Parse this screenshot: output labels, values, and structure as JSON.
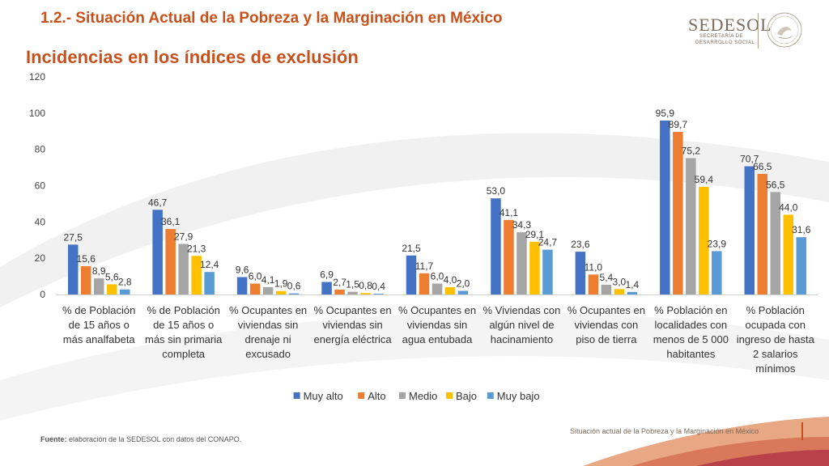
{
  "header": {
    "section_title": "1.2.- Situación Actual de la Pobreza y la Marginación en México",
    "slide_title": "Incidencias en los índices de exclusión"
  },
  "logo": {
    "wordmark": "SEDESOL",
    "sub1": "SECRETARÍA DE",
    "sub2": "DESARROLLO SOCIAL"
  },
  "footer": {
    "source_label": "Fuente:",
    "source_text": " elaboración de la SEDESOL con datos del CONAPO.",
    "right_text": "Situación actual de la Pobreza y la Marginación en México"
  },
  "colors": {
    "title": "#c8511b",
    "series": [
      "#4472c4",
      "#ed7d31",
      "#a5a5a5",
      "#ffc000",
      "#5b9bd5"
    ]
  },
  "chart_data": {
    "type": "bar",
    "ylim": [
      0,
      120
    ],
    "yticks": [
      "0",
      "20",
      "40",
      "60",
      "80",
      "100",
      "120"
    ],
    "grid": false,
    "legend_position": "bottom",
    "categories": [
      [
        "% de Población",
        "de 15 años o",
        "más analfabeta"
      ],
      [
        "% de Población",
        "de 15 años o",
        "más sin primaria",
        "completa"
      ],
      [
        "% Ocupantes en",
        "viviendas sin",
        "drenaje ni",
        "excusado"
      ],
      [
        "% Ocupantes en",
        "viviendas sin",
        "energía eléctrica"
      ],
      [
        "% Ocupantes en",
        "viviendas sin",
        "agua entubada"
      ],
      [
        "% Viviendas con",
        "algún nivel de",
        "hacinamiento"
      ],
      [
        "% Ocupantes en",
        "viviendas con",
        "piso de tierra"
      ],
      [
        "% Población en",
        "localidades con",
        "menos de 5 000",
        "habitantes"
      ],
      [
        "% Población",
        "ocupada con",
        "ingreso de hasta",
        "2 salarios",
        "mínimos"
      ]
    ],
    "series": [
      {
        "name": "Muy alto",
        "values": [
          27.5,
          46.7,
          9.6,
          6.9,
          21.5,
          53.0,
          23.6,
          95.9,
          70.7
        ],
        "labels": [
          "27,5",
          "46,7",
          "9,6",
          "6,9",
          "21,5",
          "53,0",
          "23,6",
          "95,9",
          "70,7"
        ]
      },
      {
        "name": "Alto",
        "values": [
          15.6,
          36.1,
          6.0,
          2.7,
          11.7,
          41.1,
          11.0,
          89.7,
          66.5
        ],
        "labels": [
          "15,6",
          "36,1",
          "6,0",
          "2,7",
          "11,7",
          "41,1",
          "11,0",
          "89,7",
          "66,5"
        ]
      },
      {
        "name": "Medio",
        "values": [
          8.9,
          27.9,
          4.1,
          1.5,
          6.0,
          34.3,
          5.4,
          75.2,
          56.5
        ],
        "labels": [
          "8,9",
          "27,9",
          "4,1",
          "1,5",
          "6,0",
          "34,3",
          "5,4",
          "75,2",
          "56,5"
        ]
      },
      {
        "name": "Bajo",
        "values": [
          5.6,
          21.3,
          1.9,
          0.8,
          4.0,
          29.1,
          3.0,
          59.4,
          44.0
        ],
        "labels": [
          "5,6",
          "21,3",
          "1,9",
          "0,8",
          "4,0",
          "29,1",
          "3,0",
          "59,4",
          "44,0"
        ]
      },
      {
        "name": "Muy bajo",
        "values": [
          2.8,
          12.4,
          0.6,
          0.4,
          2.0,
          24.7,
          1.4,
          23.9,
          31.6
        ],
        "labels": [
          "2,8",
          "12,4",
          "0,6",
          "0,4",
          "2,0",
          "24,7",
          "1,4",
          "23,9",
          "31,6"
        ]
      }
    ]
  }
}
